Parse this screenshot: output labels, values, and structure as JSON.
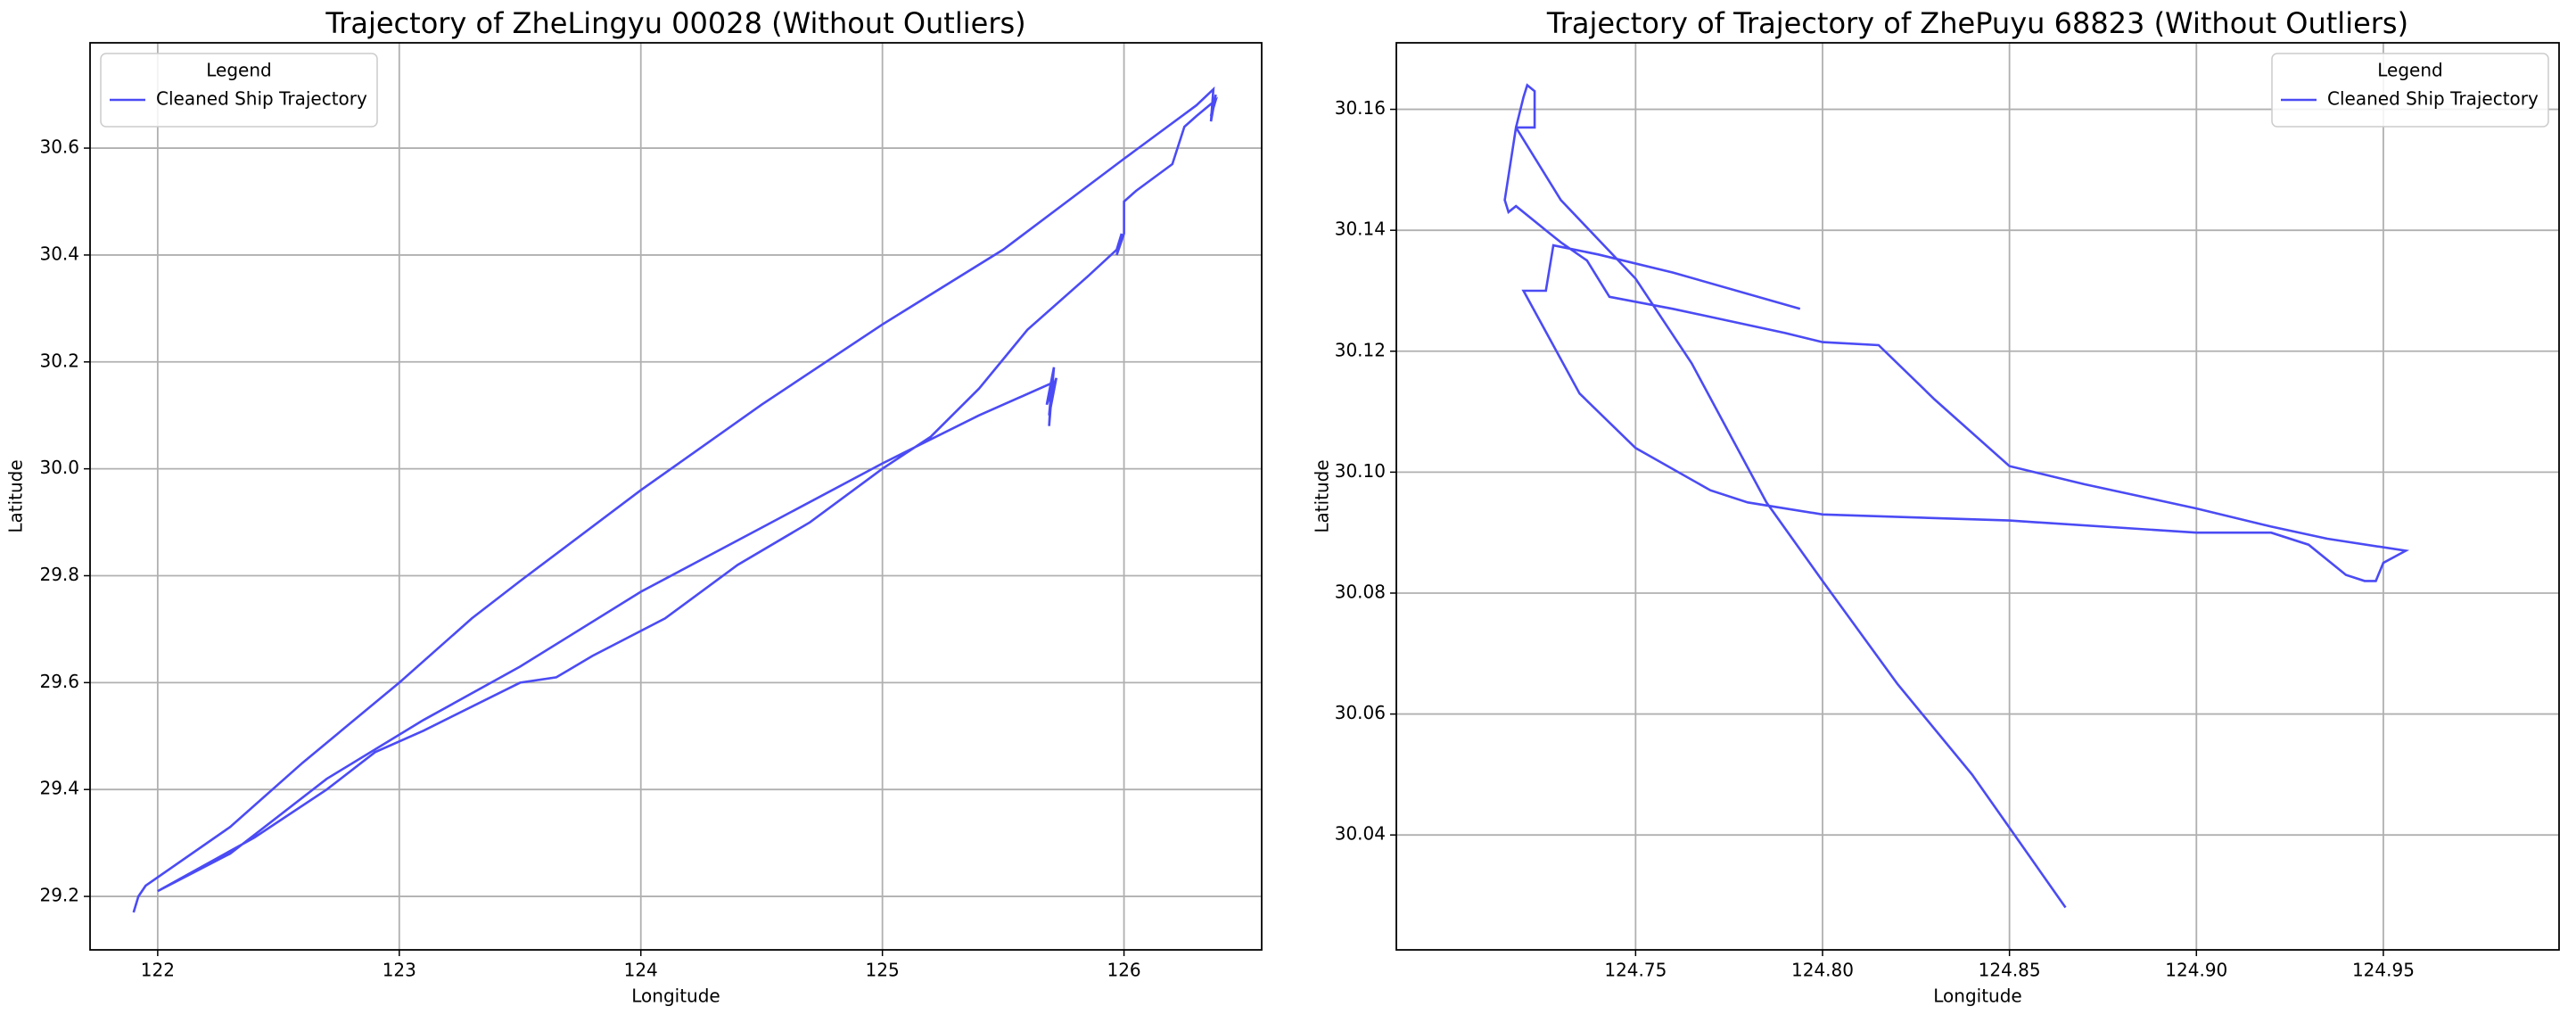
{
  "chart_data": [
    {
      "type": "line",
      "title": "Trajectory of ZheLingyu 00028 (Without Outliers)",
      "xlabel": "Longitude",
      "ylabel": "Latitude",
      "legend_title": "Legend",
      "legend_loc": "upper left",
      "grid": true,
      "xlim": [
        121.72,
        126.57
      ],
      "ylim": [
        29.1,
        30.797
      ],
      "xticks": [
        122,
        123,
        124,
        125,
        126
      ],
      "yticks": [
        29.2,
        29.4,
        29.6,
        29.8,
        {
          "value": 30.0,
          "label": "30.0"
        },
        30.2,
        30.4,
        30.6
      ],
      "series": [
        {
          "name": "Cleaned Ship Trajectory",
          "color": "#4b4bf5",
          "x": [
            121.9,
            121.92,
            121.95,
            122.3,
            122.6,
            123.0,
            123.3,
            123.5,
            124.0,
            124.5,
            125.0,
            125.5,
            126.0,
            126.3,
            126.37,
            126.36,
            126.38,
            126.36,
            126.38,
            126.3,
            126.25,
            126.2,
            126.05,
            126.0,
            126.0,
            125.97,
            125.99,
            125.97,
            125.85,
            125.6,
            125.4,
            125.2,
            125.0,
            124.7,
            124.4,
            124.1,
            123.8,
            123.65,
            123.5,
            123.1,
            122.9,
            122.7,
            122.4,
            122.0,
            122.3,
            122.7,
            123.1,
            123.5,
            124.0,
            124.5,
            125.0,
            125.4,
            125.7,
            125.69,
            125.71,
            125.68,
            125.72,
            125.69,
            125.7
          ],
          "values": [
            29.17,
            29.2,
            29.22,
            29.33,
            29.45,
            29.6,
            29.72,
            29.79,
            29.96,
            30.12,
            30.27,
            30.41,
            30.58,
            30.68,
            30.71,
            30.65,
            30.7,
            30.66,
            30.69,
            30.66,
            30.64,
            30.57,
            30.52,
            30.5,
            30.44,
            30.4,
            30.44,
            30.41,
            30.36,
            30.26,
            30.15,
            30.06,
            30.0,
            29.9,
            29.82,
            29.72,
            29.65,
            29.61,
            29.6,
            29.51,
            29.47,
            29.4,
            29.31,
            29.21,
            29.28,
            29.42,
            29.53,
            29.63,
            29.77,
            29.89,
            30.01,
            30.1,
            30.16,
            30.08,
            30.19,
            30.12,
            30.17,
            30.1,
            30.15
          ]
        }
      ]
    },
    {
      "type": "line",
      "title": "Trajectory of Trajectory of ZhePuyu 68823 (Without Outliers)",
      "xlabel": "Longitude",
      "ylabel": "Latitude",
      "legend_title": "Legend",
      "legend_loc": "upper right",
      "grid": true,
      "xlim": [
        124.686,
        124.997
      ],
      "ylim": [
        30.021,
        30.171
      ],
      "xticks": [
        124.75,
        {
          "value": 124.8,
          "label": "124.80"
        },
        124.85,
        {
          "value": 124.9,
          "label": "124.90"
        },
        124.95
      ],
      "yticks": [
        30.04,
        30.06,
        30.08,
        {
          "value": 30.1,
          "label": "30.10"
        },
        30.12,
        30.14,
        30.16
      ],
      "series": [
        {
          "name": "Cleaned Ship Trajectory",
          "color": "#4b4bf5",
          "x": [
            124.865,
            124.84,
            124.82,
            124.8,
            124.785,
            124.765,
            124.75,
            124.73,
            124.718,
            124.72,
            124.721,
            124.723,
            124.723,
            124.718,
            124.715,
            124.716,
            124.718,
            124.726,
            124.73,
            124.737,
            124.743,
            124.76,
            124.79,
            124.8,
            124.815,
            124.83,
            124.85,
            124.87,
            124.9,
            124.92,
            124.935,
            124.956,
            124.95,
            124.948,
            124.945,
            124.94,
            124.93,
            124.92,
            124.9,
            124.85,
            124.8,
            124.78,
            124.77,
            124.75,
            124.735,
            124.72,
            124.726,
            124.728,
            124.74,
            124.76,
            124.794
          ],
          "values": [
            30.028,
            30.05,
            30.065,
            30.082,
            30.095,
            30.118,
            30.132,
            30.145,
            30.157,
            30.162,
            30.164,
            30.163,
            30.157,
            30.157,
            30.145,
            30.143,
            30.144,
            30.14,
            30.138,
            30.135,
            30.129,
            30.127,
            30.123,
            30.1215,
            30.121,
            30.112,
            30.101,
            30.098,
            30.094,
            30.091,
            30.089,
            30.087,
            30.085,
            30.082,
            30.082,
            30.083,
            30.088,
            30.09,
            30.09,
            30.092,
            30.093,
            30.095,
            30.097,
            30.104,
            30.113,
            30.13,
            30.13,
            30.1375,
            30.136,
            30.133,
            30.127
          ]
        }
      ]
    }
  ]
}
